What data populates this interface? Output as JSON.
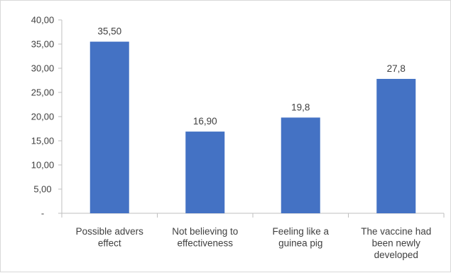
{
  "chart_data": {
    "type": "bar",
    "categories": [
      [
        "Possible advers",
        "effect"
      ],
      [
        "Not believing to",
        "effectiveness"
      ],
      [
        "Feeling like a",
        "guinea pig"
      ],
      [
        "The vaccine had",
        "been newly",
        "developed"
      ]
    ],
    "values": [
      35.5,
      16.9,
      19.8,
      27.8
    ],
    "data_labels": [
      "35,50",
      "16,90",
      "19,8",
      "27,8"
    ],
    "ylim": [
      0,
      40
    ],
    "y_ticks": [
      0,
      5,
      10,
      15,
      20,
      25,
      30,
      35,
      40
    ],
    "y_tick_labels": [
      "-",
      "5,00",
      "10,00",
      "15,00",
      "20,00",
      "25,00",
      "30,00",
      "35,00",
      "40,00"
    ],
    "grid": false,
    "title": "",
    "xlabel": "",
    "ylabel": "",
    "colors": {
      "bar": "#4472C4",
      "axis": "#bfbfbf",
      "text": "#404040"
    }
  }
}
